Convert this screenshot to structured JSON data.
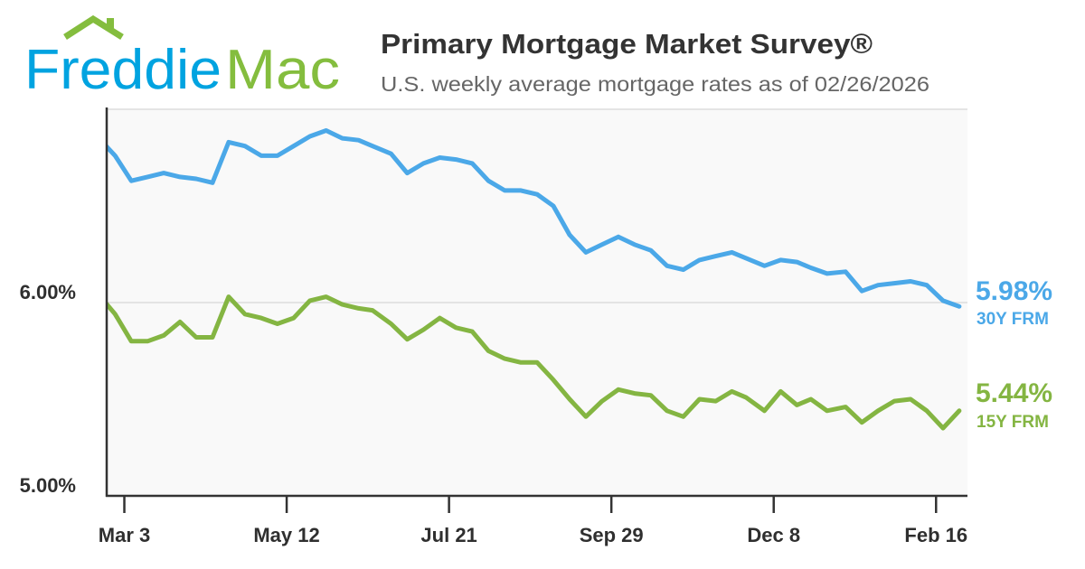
{
  "header": {
    "logo": {
      "part1": "Freddie",
      "part2": "Mac",
      "color1": "#00a3e0",
      "color2": "#84bd3e"
    },
    "title": "Primary Mortgage Market Survey®",
    "subtitle": "U.S. weekly average mortgage rates as of 02/26/2026"
  },
  "chart_data": {
    "type": "line",
    "title": "Primary Mortgage Market Survey®",
    "subtitle": "U.S. weekly average mortgage rates as of 02/26/2026",
    "xlim": [
      "2025-02-23",
      "2026-03-02"
    ],
    "ylim": [
      5,
      7
    ],
    "y_ticks": [
      {
        "value": 6,
        "label": "6.00%"
      },
      {
        "value": 5,
        "label": "5.00%"
      }
    ],
    "x_ticks": [
      {
        "date": "2025-03-03",
        "label": "Mar 3"
      },
      {
        "date": "2025-05-12",
        "label": "May 12"
      },
      {
        "date": "2025-07-21",
        "label": "Jul 21"
      },
      {
        "date": "2025-09-29",
        "label": "Sep 29"
      },
      {
        "date": "2025-12-08",
        "label": "Dec 8"
      },
      {
        "date": "2026-02-16",
        "label": "Feb 16"
      }
    ],
    "grid": true,
    "x": [
      "2025-02-20",
      "2025-02-27",
      "2025-03-06",
      "2025-03-13",
      "2025-03-20",
      "2025-03-27",
      "2025-04-03",
      "2025-04-10",
      "2025-04-17",
      "2025-04-24",
      "2025-05-01",
      "2025-05-08",
      "2025-05-15",
      "2025-05-22",
      "2025-05-29",
      "2025-06-05",
      "2025-06-12",
      "2025-06-18",
      "2025-06-26",
      "2025-07-03",
      "2025-07-10",
      "2025-07-17",
      "2025-07-24",
      "2025-07-31",
      "2025-08-07",
      "2025-08-14",
      "2025-08-21",
      "2025-08-28",
      "2025-09-04",
      "2025-09-11",
      "2025-09-18",
      "2025-09-25",
      "2025-10-02",
      "2025-10-09",
      "2025-10-16",
      "2025-10-23",
      "2025-10-30",
      "2025-11-06",
      "2025-11-13",
      "2025-11-20",
      "2025-11-26",
      "2025-12-04",
      "2025-12-11",
      "2025-12-18",
      "2025-12-24",
      "2025-12-31",
      "2026-01-08",
      "2026-01-15",
      "2026-01-22",
      "2026-01-29",
      "2026-02-05",
      "2026-02-12",
      "2026-02-19",
      "2026-02-26"
    ],
    "series": [
      {
        "name": "30Y FRM",
        "end_label": "5.98%",
        "color": "#4ba8e8",
        "values": [
          6.85,
          6.76,
          6.63,
          6.65,
          6.67,
          6.65,
          6.64,
          6.62,
          6.83,
          6.81,
          6.76,
          6.76,
          6.81,
          6.86,
          6.89,
          6.85,
          6.84,
          6.81,
          6.77,
          6.67,
          6.72,
          6.75,
          6.74,
          6.72,
          6.63,
          6.58,
          6.58,
          6.56,
          6.5,
          6.35,
          6.26,
          6.3,
          6.34,
          6.3,
          6.27,
          6.19,
          6.17,
          6.22,
          6.24,
          6.26,
          6.23,
          6.19,
          6.22,
          6.21,
          6.18,
          6.15,
          6.16,
          6.06,
          6.09,
          6.1,
          6.11,
          6.09,
          6.01,
          5.98
        ]
      },
      {
        "name": "15Y FRM",
        "end_label": "5.44%",
        "color": "#84b542",
        "values": [
          6.04,
          5.94,
          5.8,
          5.8,
          5.83,
          5.9,
          5.82,
          5.82,
          6.03,
          5.94,
          5.92,
          5.89,
          5.92,
          6.01,
          6.03,
          5.99,
          5.97,
          5.96,
          5.89,
          5.81,
          5.86,
          5.92,
          5.87,
          5.85,
          5.75,
          5.71,
          5.69,
          5.69,
          5.6,
          5.5,
          5.41,
          5.49,
          5.55,
          5.53,
          5.52,
          5.44,
          5.41,
          5.5,
          5.49,
          5.54,
          5.51,
          5.44,
          5.54,
          5.47,
          5.5,
          5.44,
          5.46,
          5.38,
          5.44,
          5.49,
          5.5,
          5.44,
          5.35,
          5.44
        ]
      }
    ]
  }
}
